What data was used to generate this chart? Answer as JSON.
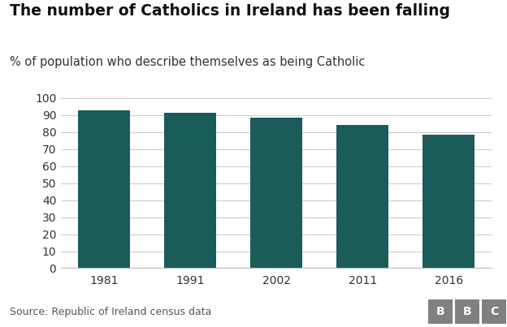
{
  "title": "The number of Catholics in Ireland has been falling",
  "subtitle": "% of population who describe themselves as being Catholic",
  "categories": [
    "1981",
    "1991",
    "2002",
    "2011",
    "2016"
  ],
  "values": [
    93,
    91.6,
    88.4,
    84.2,
    78.3
  ],
  "bar_color": "#1a5c5a",
  "ylim": [
    0,
    100
  ],
  "yticks": [
    0,
    10,
    20,
    30,
    40,
    50,
    60,
    70,
    80,
    90,
    100
  ],
  "source_text": "Source: Republic of Ireland census data",
  "bbc_text": "BBC",
  "background_color": "#ffffff",
  "title_fontsize": 13.5,
  "subtitle_fontsize": 10.5,
  "tick_fontsize": 10,
  "source_fontsize": 9,
  "bar_width": 0.6
}
